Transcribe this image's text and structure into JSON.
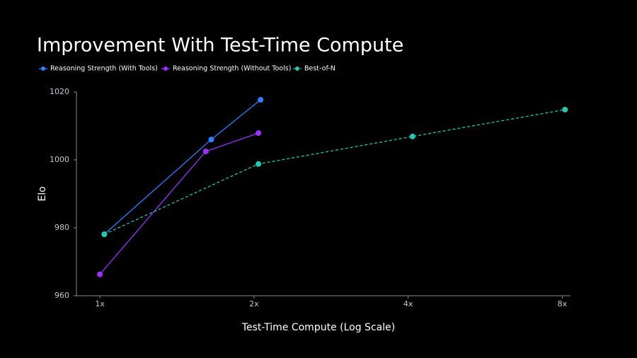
{
  "chart_data": {
    "type": "line",
    "title": "Improvement With Test-Time Compute",
    "x_label": "Test-Time Compute (Log Scale)",
    "y_label": "Elo",
    "xscale": "log",
    "xlim": [
      0.9,
      8.3
    ],
    "xticks": [
      {
        "value": 1,
        "label": "1x"
      },
      {
        "value": 2,
        "label": "2x"
      },
      {
        "value": 4,
        "label": "4x"
      },
      {
        "value": 8,
        "label": "8x"
      }
    ],
    "ylim": [
      960,
      1020
    ],
    "yticks": [
      960,
      980,
      1000,
      1020
    ],
    "grid": false,
    "legend": "top-left",
    "series": [
      {
        "name": "Reasoning Strength (With Tools)",
        "color": "#2b80ff",
        "linestyle": "solid",
        "x": [
          1.02,
          1.65,
          2.06
        ],
        "values": [
          978.1,
          1006.0,
          1017.7
        ]
      },
      {
        "name": "Reasoning Strength (Without Tools)",
        "color": "#9b30ff",
        "linestyle": "solid",
        "x": [
          1.0,
          1.61,
          2.04
        ],
        "values": [
          966.3,
          1002.5,
          1007.9
        ]
      },
      {
        "name": "Best-of-N",
        "color": "#22c8b0",
        "linestyle": "dashed",
        "x": [
          1.02,
          2.04,
          4.08,
          8.1
        ],
        "values": [
          978.1,
          998.8,
          1006.9,
          1014.8
        ]
      }
    ]
  }
}
